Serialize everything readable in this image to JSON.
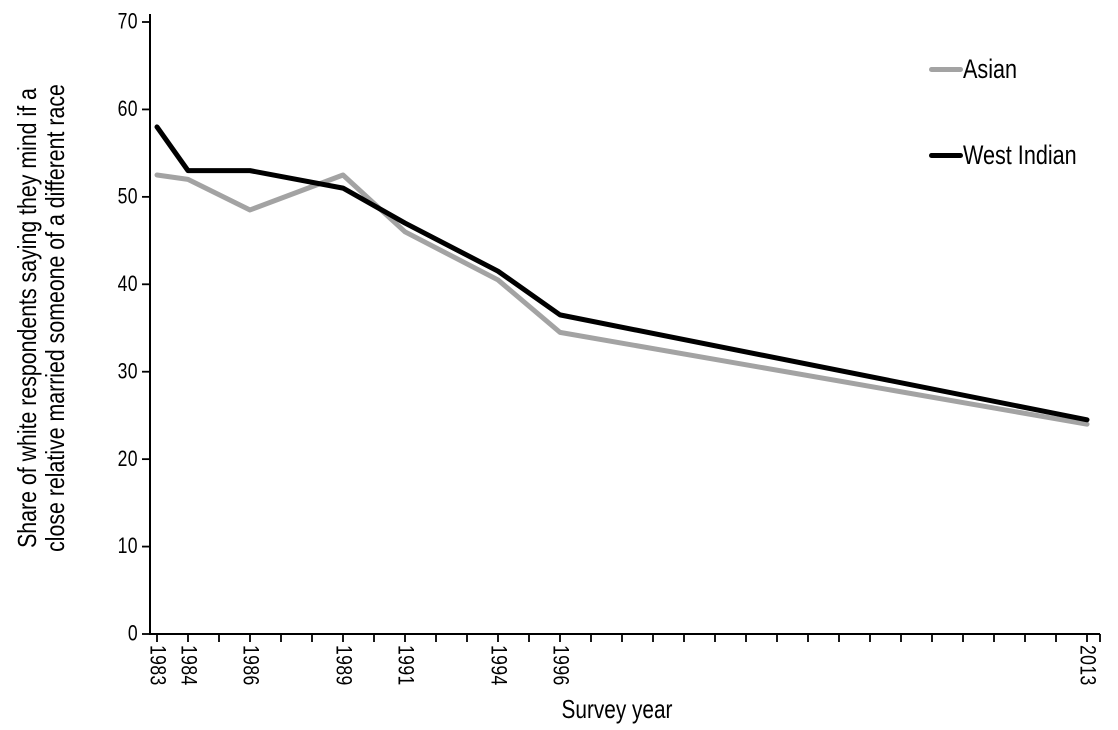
{
  "chart_data": {
    "type": "line",
    "title": "",
    "xlabel": "Survey year",
    "ylabel_line1": "Share of white respondents saying they mind if a",
    "ylabel_line2": "close relative married someone of a different race",
    "x": [
      1983,
      1984,
      1986,
      1989,
      1991,
      1994,
      1996,
      2013
    ],
    "series": [
      {
        "name": "Asian",
        "color": "#a3a3a3",
        "values": [
          52.5,
          52,
          48.5,
          52.5,
          46,
          40.5,
          34.5,
          24
        ]
      },
      {
        "name": "West Indian",
        "color": "#000000",
        "values": [
          58,
          53,
          53,
          51,
          47,
          41.5,
          36.5,
          24.5
        ]
      }
    ],
    "ylim": [
      0,
      70
    ],
    "ytick_step": 10,
    "yticks": [
      0,
      10,
      20,
      30,
      40,
      50,
      60,
      70
    ],
    "x_range": [
      1983,
      2013
    ],
    "xticks_labeled": [
      1983,
      1984,
      1986,
      1989,
      1991,
      1994,
      1996,
      2013
    ],
    "xtick_every_year": true,
    "grid": false,
    "legend_position": "top-right",
    "axis_color": "#000000"
  }
}
